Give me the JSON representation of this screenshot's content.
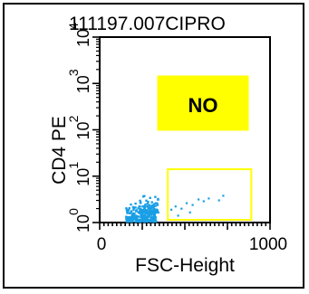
{
  "chart_data": {
    "type": "scatter",
    "title": "111197.007CIPRO",
    "xlabel": "FSC-Height",
    "ylabel": "CD4 PE",
    "x_ticks": [
      "0",
      "1000"
    ],
    "xlim": [
      0,
      1000
    ],
    "y_ticks": [
      "10",
      "10",
      "10",
      "10",
      "10"
    ],
    "y_exponents": [
      "0",
      "1",
      "2",
      "3",
      "4"
    ],
    "ylim_log10": [
      0,
      4
    ],
    "y_scale": "log",
    "point_color": "#1a9fe6",
    "annotation": {
      "text": "NO",
      "background": "#ffff00",
      "border_color": "#ffff00"
    },
    "gate": {
      "color": "#ffff00",
      "x_range": [
        400,
        890
      ],
      "y_log_range": [
        0,
        1.15
      ]
    },
    "series": [
      {
        "clusters": [
          {
            "x": [
              155,
              330
            ],
            "y_log": [
              0.02,
              0.42
            ],
            "count": 240
          },
          {
            "x": [
              235,
              345
            ],
            "y_log": [
              0.22,
              0.62
            ],
            "count": 80
          }
        ],
        "sparse_points": [
          {
            "x": 420,
            "y_log": 0.28
          },
          {
            "x": 445,
            "y_log": 0.35
          },
          {
            "x": 480,
            "y_log": 0.3
          },
          {
            "x": 510,
            "y_log": 0.42
          },
          {
            "x": 545,
            "y_log": 0.38
          },
          {
            "x": 580,
            "y_log": 0.5
          },
          {
            "x": 610,
            "y_log": 0.46
          },
          {
            "x": 640,
            "y_log": 0.52
          },
          {
            "x": 700,
            "y_log": 0.48
          },
          {
            "x": 725,
            "y_log": 0.58
          },
          {
            "x": 460,
            "y_log": 0.15
          },
          {
            "x": 530,
            "y_log": 0.22
          }
        ]
      }
    ]
  }
}
